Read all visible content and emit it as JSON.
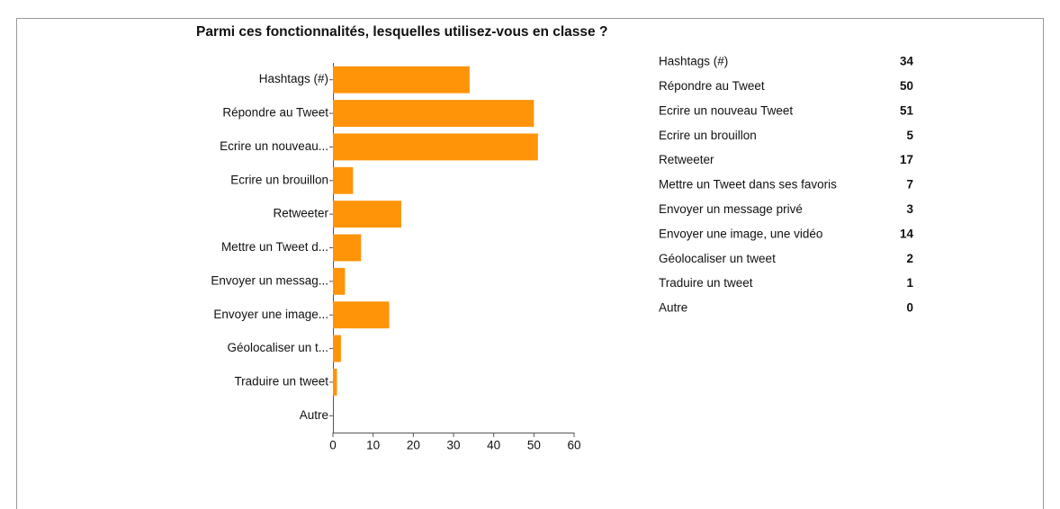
{
  "chart_data": {
    "type": "bar",
    "orientation": "horizontal",
    "title": "Parmi ces fonctionnalités, lesquelles utilisez-vous en classe ?",
    "categories": [
      "Hashtags (#)",
      "Répondre au Tweet",
      "Ecrire un nouveau...",
      "Ecrire un brouillon",
      "Retweeter",
      "Mettre un Tweet d...",
      "Envoyer un messag...",
      "Envoyer une image...",
      "Géolocaliser un t...",
      "Traduire un tweet",
      "Autre"
    ],
    "summary_labels": [
      "Hashtags (#)",
      "Répondre au Tweet",
      "Ecrire un nouveau Tweet",
      "Ecrire un brouillon",
      "Retweeter",
      "Mettre un Tweet dans ses favoris",
      "Envoyer un message privé",
      "Envoyer une image, une vidéo",
      "Géolocaliser un tweet",
      "Traduire un tweet",
      "Autre"
    ],
    "values": [
      34,
      50,
      51,
      5,
      17,
      7,
      3,
      14,
      2,
      1,
      0
    ],
    "color": "#ff9409",
    "xlim": [
      0,
      60
    ],
    "xticks": [
      0,
      10,
      20,
      30,
      40,
      50,
      60
    ]
  }
}
